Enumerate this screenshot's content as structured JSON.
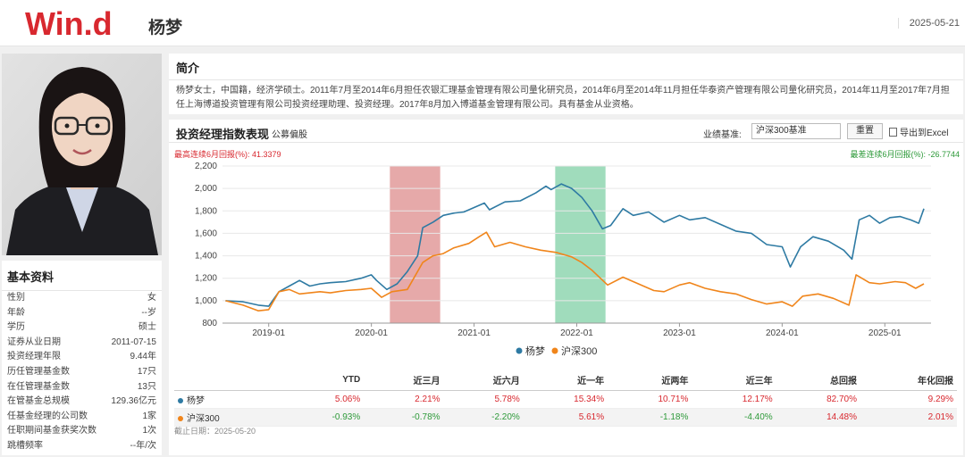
{
  "header": {
    "logo": "Win.d",
    "name": "杨梦",
    "date": "2025-05-21"
  },
  "basic": {
    "title": "基本资料",
    "rows": [
      {
        "label": "性别",
        "value": "女"
      },
      {
        "label": "年龄",
        "value": "--岁"
      },
      {
        "label": "学历",
        "value": "硕士"
      },
      {
        "label": "证券从业日期",
        "value": "2011-07-15"
      },
      {
        "label": "投资经理年限",
        "value": "9.44年"
      },
      {
        "label": "历任管理基金数",
        "value": "17只"
      },
      {
        "label": "在任管理基金数",
        "value": "13只"
      },
      {
        "label": "在管基金总规模",
        "value": "129.36亿元"
      },
      {
        "label": "任基金经理的公司数",
        "value": "1家"
      },
      {
        "label": "任职期间基金获奖次数",
        "value": "1次"
      },
      {
        "label": "跳槽频率",
        "value": "--年/次"
      }
    ]
  },
  "intro": {
    "title": "简介",
    "text": "杨梦女士，中国籍，经济学硕士。2011年7月至2014年6月担任农银汇理基金管理有限公司量化研究员，2014年6月至2014年11月担任华泰资产管理有限公司量化研究员，2014年11月至2017年7月担任上海博道投资管理有限公司投资经理助理、投资经理。2017年8月加入博道基金管理有限公司。具有基金从业资格。"
  },
  "chart_panel": {
    "title": "投资经理指数表现",
    "subtitle": "公募偏股",
    "bench_label": "业绩基准:",
    "bench_value": "沪深300基准",
    "reset_label": "重置",
    "export_label": "导出到Excel",
    "max_drawdown_left": "最高连续6月回报(%): 41.3379",
    "max_drawdown_right": "最差连续6月回报(%): -26.7744",
    "footnote": "截止日期：2025-05-20"
  },
  "chart_data": {
    "type": "line",
    "xlim": [
      2018.55,
      2025.45
    ],
    "ylim": [
      800,
      2200
    ],
    "y_ticks": [
      800,
      1000,
      1200,
      1400,
      1600,
      1800,
      2000,
      2200
    ],
    "x_ticks": [
      {
        "label": "2019-01",
        "value": 2019.0
      },
      {
        "label": "2020-01",
        "value": 2020.0
      },
      {
        "label": "2021-01",
        "value": 2021.0
      },
      {
        "label": "2022-01",
        "value": 2022.0
      },
      {
        "label": "2023-01",
        "value": 2023.0
      },
      {
        "label": "2024-01",
        "value": 2024.0
      },
      {
        "label": "2025-01",
        "value": 2025.0
      }
    ],
    "shaded": [
      {
        "from": 2020.18,
        "to": 2020.67,
        "color": "#e29a9a"
      },
      {
        "from": 2021.79,
        "to": 2022.28,
        "color": "#8fd6b0"
      }
    ],
    "series": [
      {
        "name": "杨梦",
        "color": "#2e7aa3",
        "points": [
          [
            2018.58,
            1000
          ],
          [
            2018.75,
            990
          ],
          [
            2018.9,
            960
          ],
          [
            2019.0,
            950
          ],
          [
            2019.1,
            1080
          ],
          [
            2019.2,
            1130
          ],
          [
            2019.3,
            1180
          ],
          [
            2019.4,
            1130
          ],
          [
            2019.5,
            1150
          ],
          [
            2019.6,
            1160
          ],
          [
            2019.75,
            1170
          ],
          [
            2019.9,
            1200
          ],
          [
            2020.0,
            1230
          ],
          [
            2020.05,
            1180
          ],
          [
            2020.15,
            1100
          ],
          [
            2020.25,
            1150
          ],
          [
            2020.35,
            1260
          ],
          [
            2020.45,
            1400
          ],
          [
            2020.5,
            1650
          ],
          [
            2020.6,
            1700
          ],
          [
            2020.7,
            1760
          ],
          [
            2020.8,
            1780
          ],
          [
            2020.9,
            1790
          ],
          [
            2021.0,
            1830
          ],
          [
            2021.1,
            1870
          ],
          [
            2021.15,
            1810
          ],
          [
            2021.3,
            1880
          ],
          [
            2021.45,
            1890
          ],
          [
            2021.6,
            1960
          ],
          [
            2021.7,
            2020
          ],
          [
            2021.75,
            1990
          ],
          [
            2021.85,
            2040
          ],
          [
            2021.95,
            2000
          ],
          [
            2022.05,
            1920
          ],
          [
            2022.15,
            1800
          ],
          [
            2022.25,
            1640
          ],
          [
            2022.33,
            1670
          ],
          [
            2022.45,
            1820
          ],
          [
            2022.55,
            1760
          ],
          [
            2022.7,
            1790
          ],
          [
            2022.85,
            1700
          ],
          [
            2023.0,
            1760
          ],
          [
            2023.1,
            1720
          ],
          [
            2023.25,
            1740
          ],
          [
            2023.4,
            1680
          ],
          [
            2023.55,
            1620
          ],
          [
            2023.7,
            1600
          ],
          [
            2023.85,
            1500
          ],
          [
            2024.0,
            1480
          ],
          [
            2024.08,
            1300
          ],
          [
            2024.18,
            1480
          ],
          [
            2024.3,
            1570
          ],
          [
            2024.45,
            1530
          ],
          [
            2024.6,
            1450
          ],
          [
            2024.68,
            1370
          ],
          [
            2024.75,
            1720
          ],
          [
            2024.85,
            1760
          ],
          [
            2024.95,
            1690
          ],
          [
            2025.05,
            1740
          ],
          [
            2025.15,
            1750
          ],
          [
            2025.25,
            1720
          ],
          [
            2025.33,
            1690
          ],
          [
            2025.38,
            1820
          ]
        ]
      },
      {
        "name": "沪深300",
        "color": "#f0851b",
        "points": [
          [
            2018.58,
            1000
          ],
          [
            2018.75,
            960
          ],
          [
            2018.9,
            910
          ],
          [
            2019.0,
            920
          ],
          [
            2019.1,
            1080
          ],
          [
            2019.2,
            1100
          ],
          [
            2019.3,
            1060
          ],
          [
            2019.4,
            1070
          ],
          [
            2019.5,
            1080
          ],
          [
            2019.6,
            1070
          ],
          [
            2019.75,
            1090
          ],
          [
            2019.9,
            1100
          ],
          [
            2020.0,
            1110
          ],
          [
            2020.1,
            1030
          ],
          [
            2020.2,
            1080
          ],
          [
            2020.35,
            1100
          ],
          [
            2020.5,
            1340
          ],
          [
            2020.6,
            1400
          ],
          [
            2020.7,
            1420
          ],
          [
            2020.8,
            1470
          ],
          [
            2020.95,
            1510
          ],
          [
            2021.05,
            1570
          ],
          [
            2021.12,
            1610
          ],
          [
            2021.2,
            1480
          ],
          [
            2021.35,
            1520
          ],
          [
            2021.5,
            1480
          ],
          [
            2021.65,
            1450
          ],
          [
            2021.8,
            1430
          ],
          [
            2021.95,
            1390
          ],
          [
            2022.05,
            1340
          ],
          [
            2022.15,
            1270
          ],
          [
            2022.3,
            1140
          ],
          [
            2022.45,
            1210
          ],
          [
            2022.55,
            1170
          ],
          [
            2022.75,
            1090
          ],
          [
            2022.85,
            1080
          ],
          [
            2023.0,
            1140
          ],
          [
            2023.1,
            1160
          ],
          [
            2023.25,
            1110
          ],
          [
            2023.4,
            1080
          ],
          [
            2023.55,
            1060
          ],
          [
            2023.7,
            1010
          ],
          [
            2023.85,
            970
          ],
          [
            2024.0,
            990
          ],
          [
            2024.1,
            950
          ],
          [
            2024.2,
            1040
          ],
          [
            2024.35,
            1060
          ],
          [
            2024.5,
            1020
          ],
          [
            2024.65,
            960
          ],
          [
            2024.72,
            1230
          ],
          [
            2024.85,
            1160
          ],
          [
            2024.95,
            1150
          ],
          [
            2025.1,
            1170
          ],
          [
            2025.2,
            1160
          ],
          [
            2025.3,
            1110
          ],
          [
            2025.38,
            1150
          ]
        ]
      }
    ],
    "legend": [
      "杨梦",
      "沪深300"
    ]
  },
  "perf_table": {
    "headers": [
      "",
      "YTD",
      "近三月",
      "近六月",
      "近一年",
      "近两年",
      "近三年",
      "总回报",
      "年化回报"
    ],
    "rows": [
      {
        "name": "杨梦",
        "color": "#2e7aa3",
        "values": [
          "5.06%",
          "2.21%",
          "5.78%",
          "15.34%",
          "10.71%",
          "12.17%",
          "82.70%",
          "9.29%"
        ]
      },
      {
        "name": "沪深300",
        "color": "#f0851b",
        "values": [
          "-0.93%",
          "-0.78%",
          "-2.20%",
          "5.61%",
          "-1.18%",
          "-4.40%",
          "14.48%",
          "2.01%"
        ]
      }
    ]
  },
  "colors": {
    "brand": "#d8282f",
    "positive": "#d8282f",
    "negative": "#2e9a3a"
  }
}
